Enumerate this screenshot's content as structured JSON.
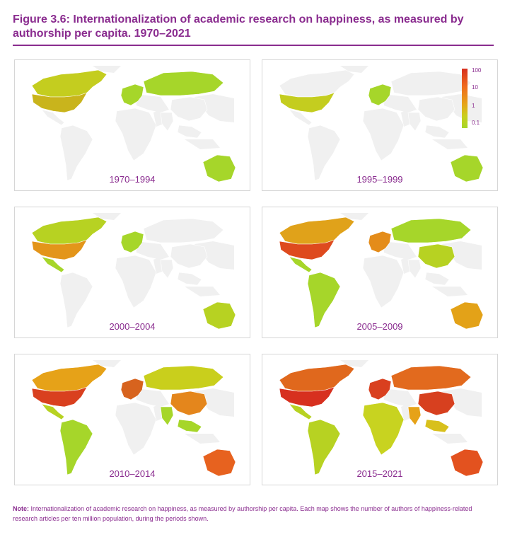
{
  "figure": {
    "title": "Figure 3.6: Internationalization of academic research on happiness, as measured by authorship per capita. 1970–2021"
  },
  "legend": {
    "ticks": [
      "100",
      "10",
      "1",
      "0.1"
    ],
    "colors": [
      "#d7301f",
      "#ef6b1e",
      "#e6a418",
      "#c9cf1c",
      "#a6d62a"
    ],
    "scale": "log"
  },
  "panels": [
    {
      "period": "1970–1994",
      "colors": {
        "na": "#c4cd1f",
        "us": "#c9b41c",
        "mx": "#f0f0f0",
        "sa": "#f0f0f0",
        "eu": "#a6d62a",
        "ru": "#a6d62a",
        "cn": "#f0f0f0",
        "au": "#a6d62a",
        "af": "#f0f0f0",
        "in": "#f0f0f0",
        "sea": "#f0f0f0"
      }
    },
    {
      "period": "1995–1999",
      "colors": {
        "na": "#f0f0f0",
        "us": "#c4cd1f",
        "mx": "#f0f0f0",
        "sa": "#f0f0f0",
        "eu": "#a6d62a",
        "ru": "#f0f0f0",
        "cn": "#f0f0f0",
        "au": "#a6d62a",
        "af": "#f0f0f0",
        "in": "#f0f0f0",
        "sea": "#f0f0f0"
      }
    },
    {
      "period": "2000–2004",
      "colors": {
        "na": "#b7d222",
        "us": "#e3951a",
        "mx": "#a6d62a",
        "sa": "#f0f0f0",
        "eu": "#a6d62a",
        "ru": "#f0f0f0",
        "cn": "#f0f0f0",
        "au": "#b7d222",
        "af": "#f0f0f0",
        "in": "#f0f0f0",
        "sea": "#f0f0f0"
      }
    },
    {
      "period": "2005–2009",
      "colors": {
        "na": "#e0a21a",
        "us": "#de4a1e",
        "mx": "#a6d62a",
        "sa": "#a6d62a",
        "eu": "#e48c1a",
        "ru": "#a6d62a",
        "cn": "#b7d222",
        "au": "#e3a218",
        "af": "#f0f0f0",
        "in": "#f0f0f0",
        "sea": "#f0f0f0"
      }
    },
    {
      "period": "2010–2014",
      "colors": {
        "na": "#e6a218",
        "us": "#d9401f",
        "mx": "#b7d222",
        "sa": "#a6d62a",
        "eu": "#d7631e",
        "ru": "#c9cf1c",
        "cn": "#e4861c",
        "au": "#e7621f",
        "af": "#f0f0f0",
        "in": "#a6d62a",
        "sea": "#a6d62a"
      }
    },
    {
      "period": "2015–2021",
      "colors": {
        "na": "#e0681d",
        "us": "#d7301f",
        "mx": "#b7d222",
        "sa": "#b7d222",
        "eu": "#d9401f",
        "ru": "#e26a1e",
        "cn": "#d7401f",
        "au": "#e3521f",
        "af": "#c8d320",
        "in": "#e6a218",
        "sea": "#d8c01c"
      }
    }
  ],
  "note": {
    "label": "Note:",
    "text": "Internationalization of academic research on happiness, as measured by authorship per capita. Each map shows the number of authors of happiness-related research articles per ten million population, during the periods shown."
  }
}
